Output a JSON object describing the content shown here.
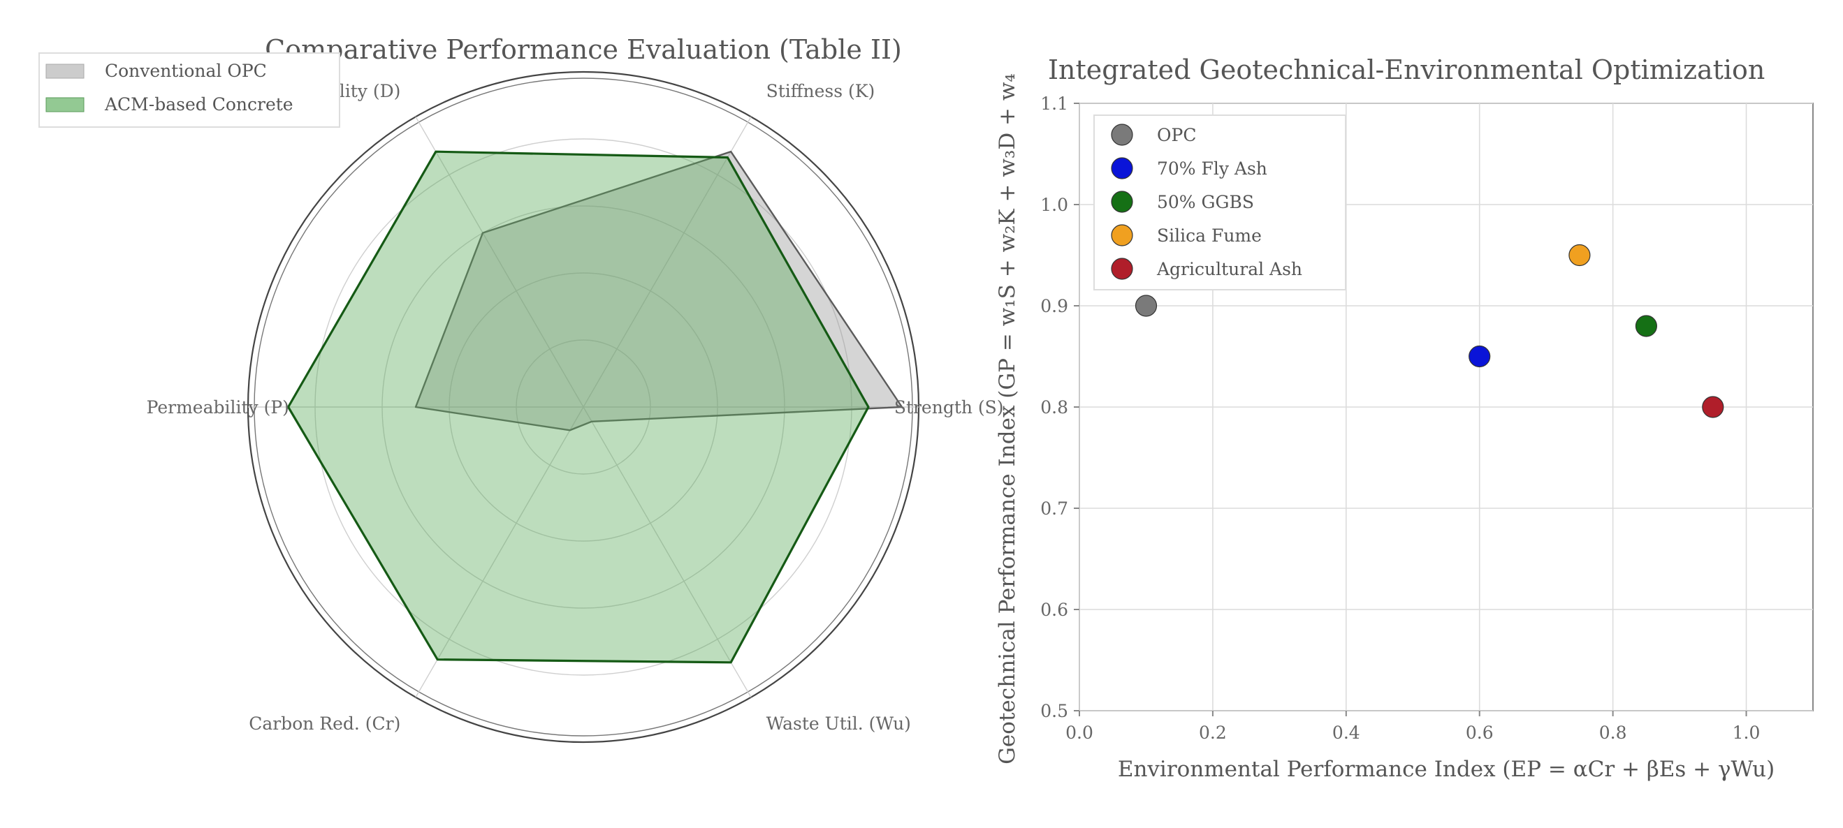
{
  "charts": {
    "radar": {
      "title": "Comparative Performance Evaluation (Table II)",
      "legend": {
        "placement": "upper-left",
        "items": [
          {
            "label": "Conventional OPC",
            "color": "#c8c8c8"
          },
          {
            "label": "ACM-based Concrete",
            "color": "#93c993"
          }
        ]
      }
    },
    "scatter": {
      "title": "Integrated Geotechnical-Environmental Optimization",
      "xlabel": "Environmental Performance Index (EP = αCr + βEs + γWu)",
      "ylabel": "Geotechnical Performance Index (GP = w₁S + w₂K + w₃D + w₄",
      "legend": {
        "placement": "upper-left",
        "items": [
          "OPC",
          "70% Fly Ash",
          "50% GGBS",
          "Silica Fume",
          "Agricultural Ash"
        ]
      }
    }
  },
  "chart_data": [
    {
      "type": "radar",
      "title": "Comparative Performance Evaluation (Table II)",
      "axes": [
        "Strength (S)",
        "Stiffness (K)",
        "Durability (D)",
        "Permeability (P)",
        "Carbon Red. (Cr)",
        "Waste Util. (Wu)"
      ],
      "rlim": [
        0,
        1
      ],
      "grid": true,
      "legend_position": "upper-left",
      "series": [
        {
          "name": "Conventional OPC",
          "values": [
            0.95,
            0.88,
            0.6,
            0.5,
            0.08,
            0.05
          ],
          "color": "#c8c8c8"
        },
        {
          "name": "ACM-based Concrete",
          "values": [
            0.85,
            0.86,
            0.88,
            0.88,
            0.87,
            0.88
          ],
          "color": "#93c993"
        }
      ]
    },
    {
      "type": "scatter",
      "title": "Integrated Geotechnical-Environmental Optimization",
      "xlabel": "Environmental Performance Index (EP = αCr + βEs + γWu)",
      "ylabel": "Geotechnical Performance Index (GP = w₁S + w₂K + w₃D + w₄",
      "xlim": [
        0.0,
        1.1
      ],
      "ylim": [
        0.5,
        1.1
      ],
      "xticks": [
        0.0,
        0.2,
        0.4,
        0.6,
        0.8,
        1.0
      ],
      "yticks": [
        0.5,
        0.6,
        0.7,
        0.8,
        0.9,
        1.0,
        1.1
      ],
      "grid": true,
      "legend_position": "upper-left",
      "series": [
        {
          "name": "OPC",
          "x": [
            0.1
          ],
          "y": [
            0.9
          ],
          "color": "#7a7a7a"
        },
        {
          "name": "70% Fly Ash",
          "x": [
            0.6
          ],
          "y": [
            0.85
          ],
          "color": "#0a14d8"
        },
        {
          "name": "50% GGBS",
          "x": [
            0.85
          ],
          "y": [
            0.88
          ],
          "color": "#157015"
        },
        {
          "name": "Silica Fume",
          "x": [
            0.75
          ],
          "y": [
            0.95
          ],
          "color": "#f0a020"
        },
        {
          "name": "Agricultural Ash",
          "x": [
            0.95
          ],
          "y": [
            0.8
          ],
          "color": "#b01e2a"
        }
      ]
    }
  ]
}
